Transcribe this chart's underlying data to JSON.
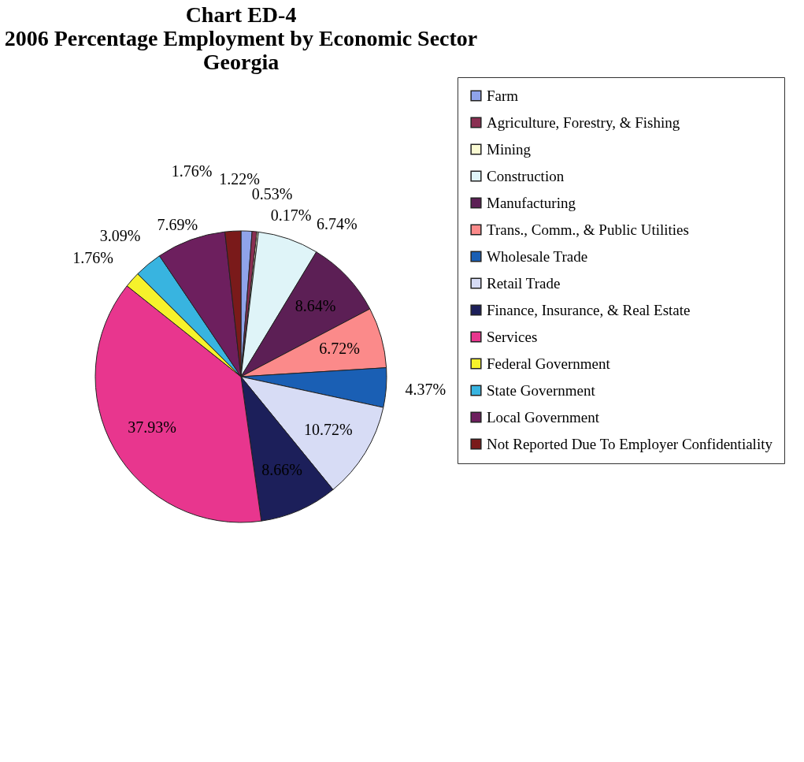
{
  "chart_data": {
    "type": "pie",
    "title": [
      "Chart ED-4",
      "2006 Percentage Employment by Economic Sector",
      "Georgia"
    ],
    "categories": [
      "Farm",
      "Agriculture, Forestry, & Fishing",
      "Mining",
      "Construction",
      "Manufacturing",
      "Trans., Comm., & Public Utilities",
      "Wholesale Trade",
      "Retail Trade",
      "Finance, Insurance, & Real Estate",
      "Services",
      "Federal Government",
      "State Government",
      "Local Government",
      "Not Reported Due To Employer Confidentiality"
    ],
    "values": [
      1.22,
      0.53,
      0.17,
      6.74,
      8.64,
      6.72,
      4.37,
      10.72,
      8.66,
      37.93,
      1.76,
      3.09,
      7.69,
      1.76
    ],
    "colors": [
      "#8fa3ea",
      "#8a2f52",
      "#fafad2",
      "#dff4f8",
      "#5c1f55",
      "#fb8a8a",
      "#1a5fb4",
      "#d7dcf5",
      "#1c1f5a",
      "#e8368e",
      "#f6f22b",
      "#38b4e0",
      "#6d1f5e",
      "#7a1a1a"
    ],
    "value_labels": [
      "1.22%",
      "0.53%",
      "0.17%",
      "6.74%",
      "8.64%",
      "6.72%",
      "4.37%",
      "10.72%",
      "8.66%",
      "37.93%",
      "1.76%",
      "3.09%",
      "7.69%",
      "1.76%"
    ],
    "legend": "right"
  }
}
